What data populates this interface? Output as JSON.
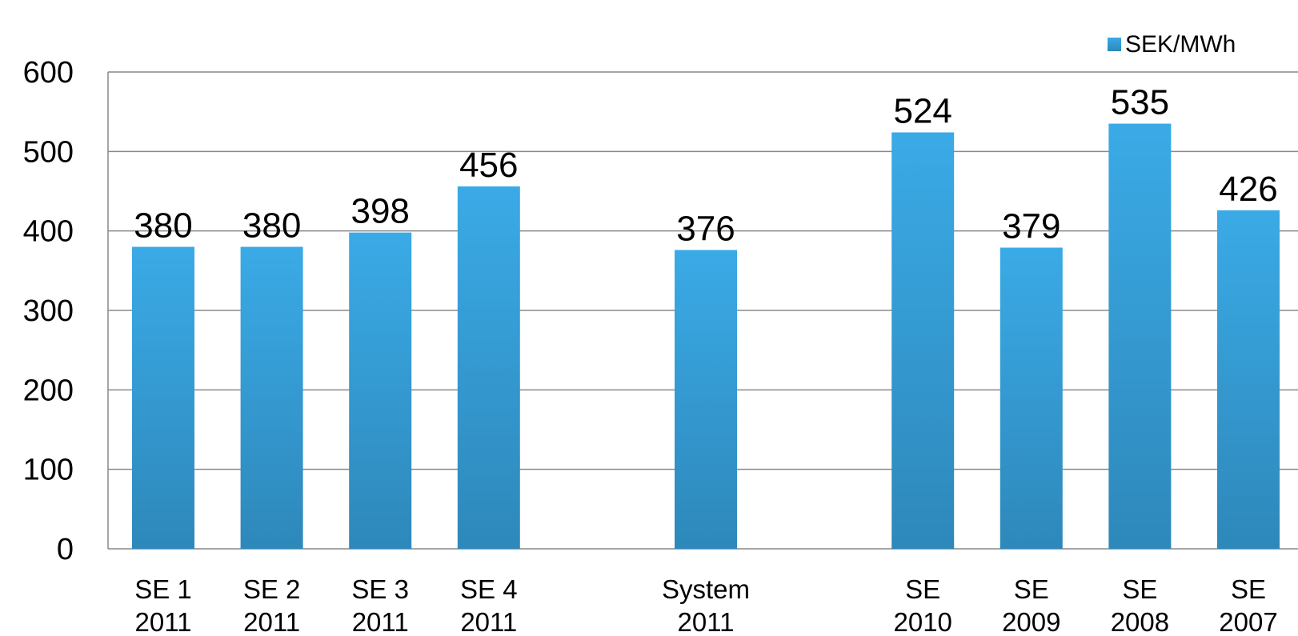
{
  "chart_data": {
    "type": "bar",
    "categories": [
      [
        "SE 1",
        "2011"
      ],
      [
        "SE 2",
        "2011"
      ],
      [
        "SE 3",
        "2011"
      ],
      [
        "SE 4",
        "2011"
      ],
      [
        "System",
        "2011"
      ],
      [
        "SE",
        "2010"
      ],
      [
        "SE",
        "2009"
      ],
      [
        "SE",
        "2008"
      ],
      [
        "SE",
        "2007"
      ]
    ],
    "slots": [
      0,
      1,
      2,
      3,
      5,
      7,
      8,
      9,
      10
    ],
    "series": [
      {
        "name": "SEK/MWh",
        "values": [
          380,
          380,
          398,
          456,
          376,
          524,
          379,
          535,
          426
        ],
        "color": "#3aaae6",
        "color_dark": "#2e88ba"
      }
    ],
    "data_labels": [
      "380",
      "380",
      "398",
      "456",
      "376",
      "524",
      "379",
      "535",
      "426"
    ],
    "ylim": [
      0,
      600
    ],
    "yticks": [
      0,
      100,
      200,
      300,
      400,
      500,
      600
    ],
    "ytick_labels": [
      "0",
      "100",
      "200",
      "300",
      "400",
      "500",
      "600"
    ],
    "grid": true,
    "legend": "top-right",
    "title": "",
    "xlabel": "",
    "ylabel": ""
  }
}
